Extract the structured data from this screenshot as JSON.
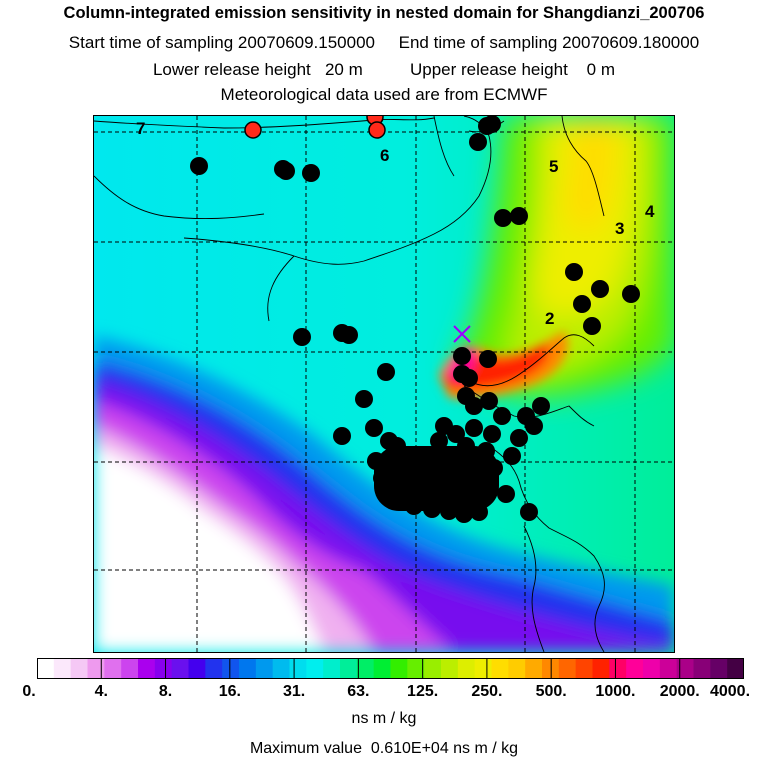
{
  "header": {
    "title": "Column-integrated emission sensitivity in nested domain for Shangdianzi_200706",
    "line2": "Start time of sampling 20070609.150000     End time of sampling 20070609.180000",
    "line3": "Lower release height   20 m          Upper release height    0 m",
    "line4": "Meteorological data used are from ECMWF"
  },
  "map": {
    "point_labels": [
      {
        "text": "7",
        "name": "label-7"
      },
      {
        "text": "6",
        "name": "label-6"
      },
      {
        "text": "5",
        "name": "label-5"
      },
      {
        "text": "4",
        "name": "label-4"
      },
      {
        "text": "3",
        "name": "label-3"
      },
      {
        "text": "2",
        "name": "label-2"
      }
    ],
    "station_marker": "x-marker",
    "colors": {
      "marker_fill": "#000000",
      "highlight_marker_fill": "#ff2a1a"
    }
  },
  "colorbar": {
    "labels": [
      "0.",
      "4.",
      "8.",
      "16.",
      "31.",
      "63.",
      "125.",
      "250.",
      "500.",
      "1000.",
      "2000.",
      "4000."
    ],
    "colors": [
      "#ffffff",
      "#fbe8fb",
      "#f5c8f5",
      "#ee9aee",
      "#e070ee",
      "#cc44ee",
      "#aa00ee",
      "#8800ee",
      "#6a10ee",
      "#4400ee",
      "#2233ee",
      "#1155ee",
      "#0077ee",
      "#0099ee",
      "#00bbee",
      "#00ddee",
      "#00eeee",
      "#00eecc",
      "#00ee99",
      "#00ee66",
      "#00ee33",
      "#33ee00",
      "#66ee00",
      "#99ee00",
      "#bbee00",
      "#ddee00",
      "#eeee00",
      "#ffdd00",
      "#ffcc00",
      "#ffaa00",
      "#ff8800",
      "#ff6600",
      "#ff4400",
      "#ff2200",
      "#ff0066",
      "#ff0099",
      "#ee00aa",
      "#cc0099",
      "#aa0088",
      "#880077",
      "#660066",
      "#440044"
    ],
    "unit": "ns m / kg",
    "max_value": "Maximum value  0.610E+04 ns m / kg"
  }
}
